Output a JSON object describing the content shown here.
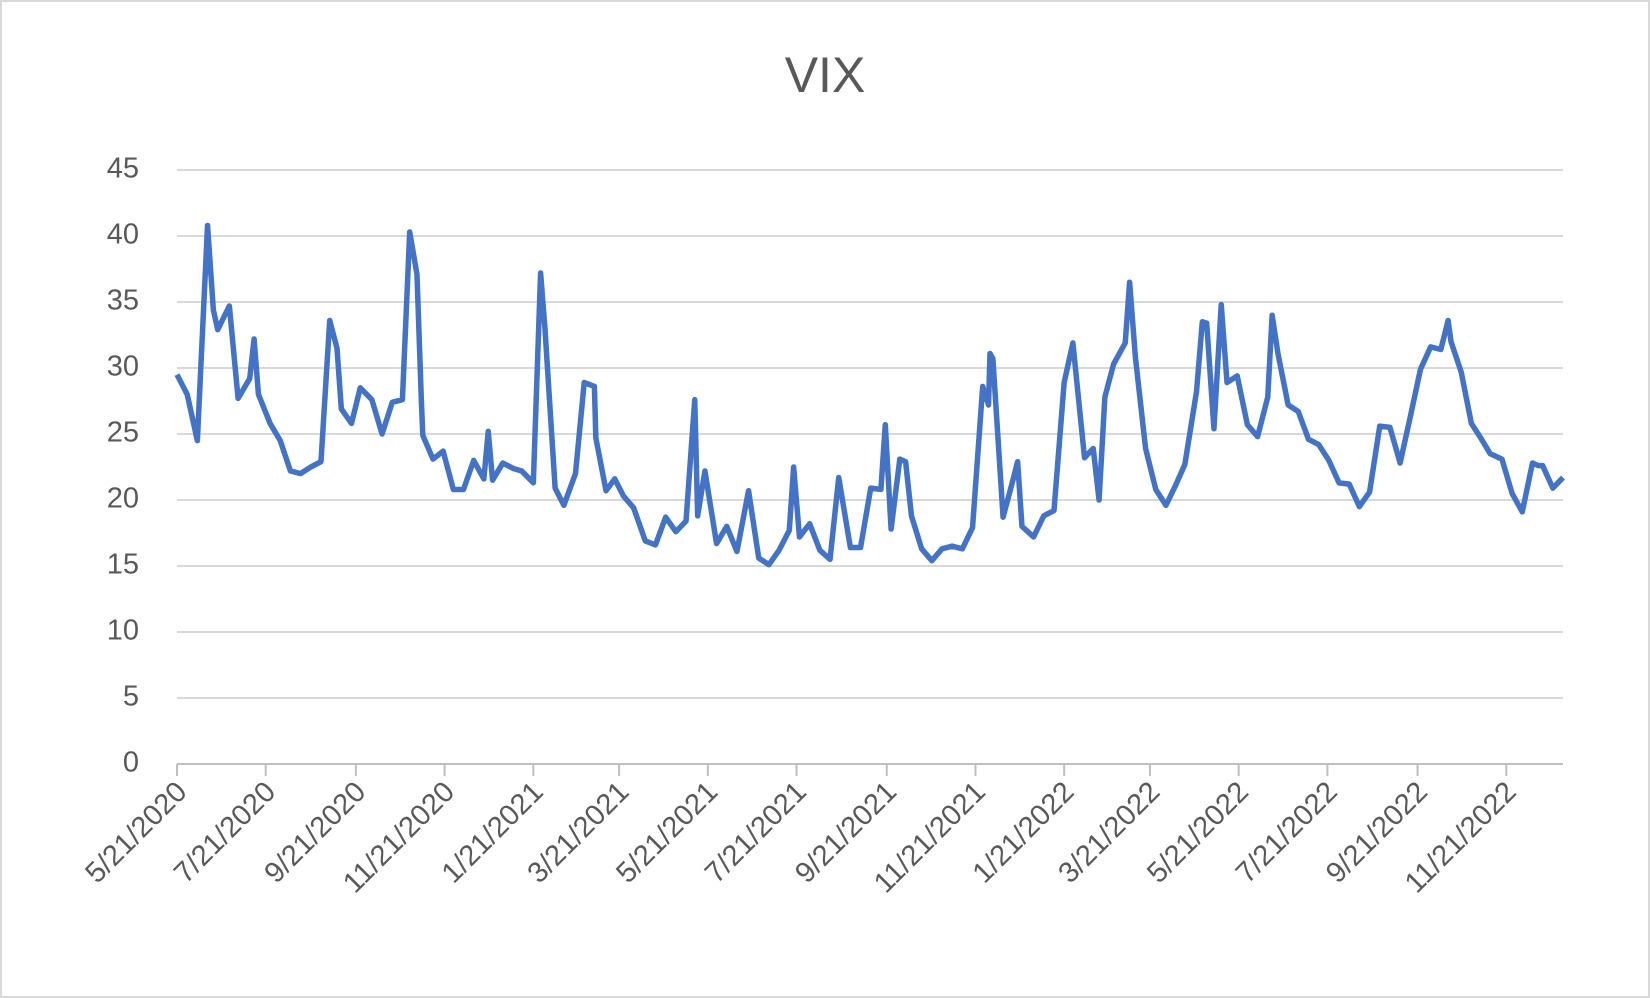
{
  "chart_data": {
    "type": "line",
    "title": "VIX",
    "x": [
      "5/21/2020",
      "5/28/2020",
      "6/4/2020",
      "6/11/2020",
      "6/15/2020",
      "6/18/2020",
      "6/26/2020",
      "7/2/2020",
      "7/10/2020",
      "7/13/2020",
      "7/16/2020",
      "7/24/2020",
      "7/31/2020",
      "8/7/2020",
      "8/14/2020",
      "8/21/2020",
      "8/28/2020",
      "9/3/2020",
      "9/8/2020",
      "9/11/2020",
      "9/18/2020",
      "9/24/2020",
      "10/2/2020",
      "10/9/2020",
      "10/16/2020",
      "10/23/2020",
      "10/28/2020",
      "11/2/2020",
      "11/5/2020",
      "11/6/2020",
      "11/13/2020",
      "11/20/2020",
      "11/27/2020",
      "12/4/2020",
      "12/11/2020",
      "12/18/2020",
      "12/21/2020",
      "12/24/2020",
      "12/31/2020",
      "1/7/2021",
      "1/13/2021",
      "1/21/2021",
      "1/26/2021",
      "1/29/2021",
      "2/5/2021",
      "2/11/2021",
      "2/19/2021",
      "2/25/2021",
      "3/4/2021",
      "3/5/2021",
      "3/12/2021",
      "3/18/2021",
      "3/24/2021",
      "3/31/2021",
      "4/8/2021",
      "4/15/2021",
      "4/22/2021",
      "4/29/2021",
      "5/6/2021",
      "5/12/2021",
      "5/14/2021",
      "5/19/2021",
      "5/27/2021",
      "6/3/2021",
      "6/10/2021",
      "6/18/2021",
      "6/25/2021",
      "7/2/2021",
      "7/9/2021",
      "7/16/2021",
      "7/19/2021",
      "7/23/2021",
      "7/30/2021",
      "8/6/2021",
      "8/13/2021",
      "8/19/2021",
      "8/27/2021",
      "9/3/2021",
      "9/10/2021",
      "9/17/2021",
      "9/20/2021",
      "9/24/2021",
      "9/30/2021",
      "10/4/2021",
      "10/8/2021",
      "10/15/2021",
      "10/22/2021",
      "10/29/2021",
      "11/5/2021",
      "11/12/2021",
      "11/19/2021",
      "11/26/2021",
      "11/30/2021",
      "12/1/2021",
      "12/3/2021",
      "12/10/2021",
      "12/17/2021",
      "12/20/2021",
      "12/23/2021",
      "12/31/2021",
      "1/7/2022",
      "1/14/2022",
      "1/21/2022",
      "1/27/2022",
      "2/4/2022",
      "2/10/2022",
      "2/14/2022",
      "2/18/2022",
      "2/24/2022",
      "3/4/2022",
      "3/7/2022",
      "3/11/2022",
      "3/18/2022",
      "3/25/2022",
      "4/1/2022",
      "4/8/2022",
      "4/14/2022",
      "4/22/2022",
      "4/26/2022",
      "4/29/2022",
      "5/4/2022",
      "5/9/2022",
      "5/13/2022",
      "5/20/2022",
      "5/27/2022",
      "6/3/2022",
      "6/10/2022",
      "6/13/2022",
      "6/17/2022",
      "6/24/2022",
      "7/1/2022",
      "7/8/2022",
      "7/15/2022",
      "7/22/2022",
      "7/29/2022",
      "8/5/2022",
      "8/12/2022",
      "8/19/2022",
      "8/26/2022",
      "9/2/2022",
      "9/9/2022",
      "9/16/2022",
      "9/23/2022",
      "9/30/2022",
      "10/7/2022",
      "10/12/2022",
      "10/14/2022",
      "10/21/2022",
      "10/28/2022",
      "11/4/2022",
      "11/10/2022",
      "11/18/2022",
      "11/25/2022",
      "12/2/2022",
      "12/9/2022",
      "12/13/2022",
      "12/16/2022",
      "12/23/2022",
      "12/30/2022"
    ],
    "series": [
      {
        "name": "VIX",
        "color": "#4472c4",
        "values": [
          29.5,
          28,
          24.5,
          40.8,
          34.4,
          32.9,
          34.7,
          27.7,
          29.2,
          32.2,
          28,
          25.8,
          24.5,
          22.2,
          22,
          22.5,
          22.9,
          33.6,
          31.5,
          26.9,
          25.8,
          28.5,
          27.6,
          25,
          27.4,
          27.6,
          40.3,
          37.1,
          27.6,
          24.9,
          23.1,
          23.7,
          20.8,
          20.8,
          23,
          21.6,
          25.2,
          21.5,
          22.8,
          22.4,
          22.2,
          21.3,
          37.2,
          33,
          20.9,
          19.6,
          22,
          28.9,
          28.6,
          24.7,
          20.7,
          21.6,
          20.3,
          19.4,
          16.9,
          16.6,
          18.7,
          17.6,
          18.4,
          27.6,
          18.8,
          22.2,
          16.7,
          18,
          16.1,
          20.7,
          15.6,
          15.1,
          16.2,
          17.7,
          22.5,
          17.2,
          18.2,
          16.2,
          15.5,
          21.7,
          16.4,
          16.4,
          20.9,
          20.8,
          25.7,
          17.8,
          23.1,
          22.9,
          18.8,
          16.3,
          15.4,
          16.3,
          16.5,
          16.3,
          17.9,
          28.6,
          27.2,
          31.1,
          30.7,
          18.7,
          21.6,
          22.9,
          18,
          17.2,
          18.8,
          19.2,
          28.9,
          31.9,
          23.2,
          23.9,
          20,
          27.8,
          30.3,
          31.9,
          36.5,
          30.8,
          23.9,
          20.8,
          19.6,
          21.2,
          22.7,
          28.2,
          33.5,
          33.4,
          25.4,
          34.8,
          28.9,
          29.4,
          25.7,
          24.8,
          27.8,
          34,
          31.1,
          27.2,
          26.7,
          24.6,
          24.2,
          23,
          21.3,
          21.2,
          19.5,
          20.6,
          25.6,
          25.5,
          22.8,
          26.3,
          29.9,
          31.6,
          31.4,
          33.6,
          32,
          29.7,
          25.8,
          24.6,
          23.5,
          23.1,
          20.5,
          19.1,
          22.8,
          22.6,
          22.6,
          20.9,
          21.7
        ]
      }
    ],
    "xlim": [
      "5/21/2020",
      "12/30/2022"
    ],
    "xticks": [
      "5/21/2020",
      "7/21/2020",
      "9/21/2020",
      "11/21/2020",
      "1/21/2021",
      "3/21/2021",
      "5/21/2021",
      "7/21/2021",
      "9/21/2021",
      "11/21/2021",
      "1/21/2022",
      "3/21/2022",
      "5/21/2022",
      "7/21/2022",
      "9/21/2022",
      "11/21/2022"
    ],
    "ylim": [
      0,
      45
    ],
    "yticks": [
      0,
      5,
      10,
      15,
      20,
      25,
      30,
      35,
      40,
      45
    ],
    "grid": true
  }
}
